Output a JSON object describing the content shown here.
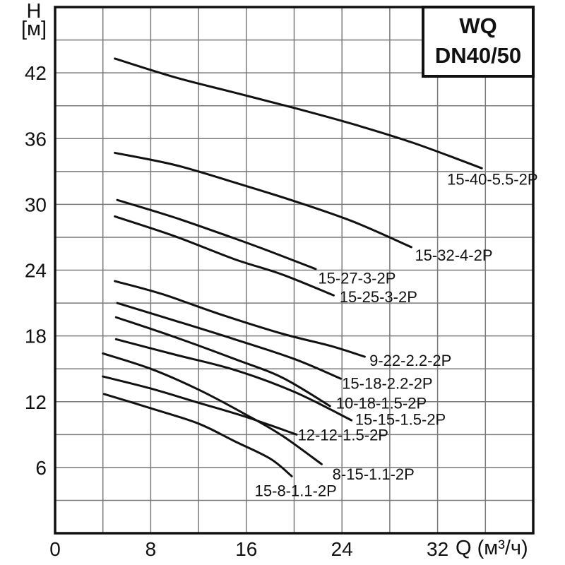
{
  "title_box": {
    "line1": "WQ",
    "line2": "DN40/50"
  },
  "y_axis_title": {
    "line1": "H",
    "line2": "[м]"
  },
  "x_axis_title": "Q (м³/ч)",
  "colors": {
    "curve": "#111111",
    "grid": "#7a7a7a",
    "border": "#111111",
    "background": "#ffffff",
    "text": "#111111"
  },
  "chart_data": {
    "type": "line",
    "title": "WQ DN40/50",
    "xlabel": "Q (м³/ч)",
    "ylabel": "H [м]",
    "xlim": [
      0,
      40
    ],
    "ylim": [
      0,
      48
    ],
    "x_ticks": [
      0,
      8,
      16,
      24,
      32
    ],
    "y_ticks": [
      6,
      12,
      18,
      24,
      30,
      36,
      42
    ],
    "x_grid_step": 4,
    "y_grid_step": 3,
    "grid": true,
    "legend_position": "inline-labels",
    "series": [
      {
        "name": "15-40-5.5-2P",
        "points": [
          [
            5,
            43.3
          ],
          [
            10,
            41.6
          ],
          [
            15,
            40.2
          ],
          [
            20,
            38.8
          ],
          [
            25,
            37.3
          ],
          [
            30,
            35.6
          ],
          [
            35.7,
            33.3
          ]
        ],
        "label_pos": {
          "q": 32.8,
          "h": 32.3
        }
      },
      {
        "name": "15-32-4-2P",
        "points": [
          [
            5,
            34.7
          ],
          [
            10,
            33.6
          ],
          [
            15,
            32.0
          ],
          [
            20,
            30.3
          ],
          [
            25,
            28.4
          ],
          [
            29.8,
            26.1
          ]
        ],
        "label_pos": {
          "q": 30.1,
          "h": 25.4
        }
      },
      {
        "name": "15-27-3-2P",
        "points": [
          [
            5.2,
            30.4
          ],
          [
            10,
            28.8
          ],
          [
            15,
            26.9
          ],
          [
            18,
            25.7
          ],
          [
            21.8,
            24.1
          ]
        ],
        "label_pos": {
          "q": 22.0,
          "h": 23.3
        }
      },
      {
        "name": "15-25-3-2P",
        "points": [
          [
            5,
            28.9
          ],
          [
            10,
            27.1
          ],
          [
            15,
            25.0
          ],
          [
            19,
            23.6
          ],
          [
            23.3,
            21.7
          ]
        ],
        "label_pos": {
          "q": 23.8,
          "h": 21.6
        }
      },
      {
        "name": "9-22-2.2-2P",
        "points": [
          [
            5,
            23.0
          ],
          [
            9,
            21.8
          ],
          [
            14,
            19.9
          ],
          [
            19,
            18.2
          ],
          [
            23,
            17.1
          ],
          [
            25.9,
            16.1
          ]
        ],
        "label_pos": {
          "q": 26.3,
          "h": 15.8
        }
      },
      {
        "name": "15-18-2.2-2P",
        "points": [
          [
            5.2,
            21.0
          ],
          [
            10,
            19.4
          ],
          [
            15,
            17.7
          ],
          [
            20,
            15.9
          ],
          [
            23.9,
            14.1
          ]
        ],
        "label_pos": {
          "q": 24.0,
          "h": 13.7
        }
      },
      {
        "name": "10-18-1.5-2P",
        "points": [
          [
            5.1,
            19.7
          ],
          [
            10,
            17.9
          ],
          [
            15,
            15.9
          ],
          [
            19,
            14.2
          ],
          [
            23,
            11.6
          ]
        ],
        "label_pos": {
          "q": 23.5,
          "h": 11.9
        }
      },
      {
        "name": "15-15-1.5-2P",
        "points": [
          [
            5.1,
            17.7
          ],
          [
            10,
            16.3
          ],
          [
            15,
            14.9
          ],
          [
            20,
            12.9
          ],
          [
            24.8,
            10.3
          ]
        ],
        "label_pos": {
          "q": 25.1,
          "h": 10.4
        }
      },
      {
        "name": "12-12-1.5-2P",
        "points": [
          [
            4,
            14.3
          ],
          [
            8,
            13.2
          ],
          [
            12,
            11.9
          ],
          [
            16,
            10.6
          ],
          [
            20.2,
            9.0
          ]
        ],
        "label_pos": {
          "q": 20.3,
          "h": 9.0
        }
      },
      {
        "name": "8-15-1.1-2P",
        "points": [
          [
            4,
            16.4
          ],
          [
            8,
            15.0
          ],
          [
            12,
            13.1
          ],
          [
            16,
            10.8
          ],
          [
            19,
            8.9
          ],
          [
            22.3,
            6.3
          ]
        ],
        "label_pos": {
          "q": 23.2,
          "h": 5.4
        }
      },
      {
        "name": "15-8-1.1-2P",
        "points": [
          [
            4.1,
            12.7
          ],
          [
            8,
            11.4
          ],
          [
            12,
            10.0
          ],
          [
            15,
            8.4
          ],
          [
            18,
            6.8
          ],
          [
            19.8,
            5.2
          ]
        ],
        "label_pos": {
          "q": 16.7,
          "h": 3.9
        }
      }
    ]
  }
}
